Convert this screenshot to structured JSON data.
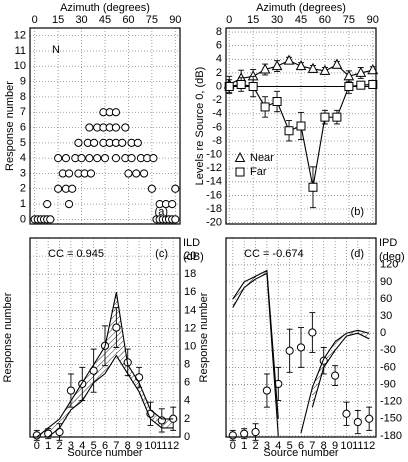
{
  "chart_data": [
    {
      "type": "scatter",
      "xlabel": "Azimuth (degrees)",
      "ylabel": "Response number",
      "xaxis": "top",
      "xlim": [
        -3,
        93
      ],
      "xticks": [
        0,
        15,
        30,
        45,
        60,
        75,
        90
      ],
      "ylim": [
        -0.3,
        12.5
      ],
      "yticks": [
        0,
        1,
        2,
        3,
        4,
        5,
        6,
        7,
        8,
        9,
        10,
        11,
        12
      ],
      "grid": true,
      "annotation": "N",
      "label": "(a)",
      "label_loc": "lower right",
      "x": [
        0,
        2,
        4,
        6,
        8,
        10,
        78,
        80,
        82,
        84,
        86,
        88,
        90,
        8,
        22,
        80,
        84,
        88,
        15,
        20,
        24,
        75,
        90,
        18,
        22,
        28,
        32,
        36,
        60,
        65,
        70,
        15,
        20,
        26,
        30,
        35,
        40,
        45,
        52,
        58,
        62,
        68,
        72,
        76,
        28,
        34,
        38,
        44,
        48,
        52,
        56,
        62,
        66,
        35,
        40,
        44,
        48,
        52,
        58,
        44,
        48,
        52
      ],
      "y": [
        0,
        0,
        0,
        0,
        0,
        0,
        0,
        0,
        0,
        0,
        0,
        0,
        0,
        1,
        1,
        1,
        1,
        1,
        2,
        2,
        2,
        2,
        2,
        3,
        3,
        3,
        3,
        3,
        3,
        3,
        3,
        4,
        4,
        4,
        4,
        4,
        4,
        4,
        4,
        4,
        4,
        4,
        4,
        4,
        5,
        5,
        5,
        5,
        5,
        5,
        5,
        5,
        5,
        6,
        6,
        6,
        6,
        6,
        6,
        7,
        7,
        7
      ]
    },
    {
      "type": "line",
      "xlabel": "Azimuth (degrees)",
      "ylabel": "Levels re Source 0, (dB)",
      "xaxis": "top",
      "xlim": [
        -2,
        92
      ],
      "xticks": [
        0,
        15,
        30,
        45,
        60,
        75,
        90
      ],
      "ylim": [
        -20.2,
        8.6
      ],
      "yticks": [
        -20,
        -18,
        -16,
        -14,
        -12,
        -10,
        -8,
        -6,
        -4,
        -2,
        0,
        2,
        4,
        6,
        8
      ],
      "grid": true,
      "reference_line": 0,
      "label": "(b)",
      "label_loc": "lower right",
      "legend": "center left",
      "x": [
        0,
        7.5,
        15,
        22.5,
        30,
        37.5,
        45,
        52.5,
        60,
        67.5,
        75,
        82.5,
        90
      ],
      "series": [
        {
          "name": "Near",
          "marker": "triangle",
          "values": [
            0.3,
            1.2,
            1.5,
            2.5,
            3.0,
            3.8,
            3.0,
            2.6,
            2.3,
            3.2,
            1.5,
            2.0,
            2.4
          ],
          "errors": [
            1.2,
            1.2,
            1,
            0.8,
            0.8,
            0.5,
            0.5,
            0.5,
            0.5,
            0.5,
            0.8,
            0.8,
            0.5
          ]
        },
        {
          "name": "Far",
          "marker": "square",
          "values": [
            0,
            0.3,
            0,
            -3,
            -2.2,
            -6.5,
            -5.8,
            -14.8,
            -4.5,
            -4.5,
            0,
            0.2,
            0.3
          ],
          "errors": [
            1,
            1,
            1.5,
            1.5,
            1.5,
            1.5,
            2,
            3,
            1,
            1,
            1,
            0.5,
            0.5
          ]
        }
      ]
    },
    {
      "type": "line",
      "xlabel": "Source number",
      "ylabel": "Response number",
      "y2label": [
        "ILD",
        "(dB)"
      ],
      "xaxis": "bottom",
      "xlim": [
        -0.6,
        12.6
      ],
      "xticks": [
        0,
        1,
        2,
        3,
        4,
        5,
        6,
        7,
        8,
        9,
        10,
        11,
        12
      ],
      "ylim": [
        0,
        12
      ],
      "y2lim": [
        0,
        22
      ],
      "y2ticks": [
        0,
        2,
        4,
        6,
        8,
        10,
        12,
        14,
        16,
        18,
        20
      ],
      "grid": true,
      "annotation": "CC = 0.945",
      "label": "(c)",
      "label_loc": "upper right",
      "hatch_between": [
        1,
        2
      ],
      "x": [
        0,
        1,
        2,
        3,
        4,
        5,
        6,
        7,
        8,
        9,
        10,
        11,
        12
      ],
      "series": [
        {
          "marker": "circle",
          "linestyle": "none",
          "values": [
            0.1,
            0.2,
            0.3,
            2.8,
            3.2,
            4.0,
            5.5,
            6.6,
            4.5,
            3.6,
            1.4,
            1.0,
            1.1
          ],
          "errors": [
            0.3,
            0.3,
            0.5,
            1,
            1,
            1.3,
            1.2,
            1.2,
            0.8,
            0.6,
            0.7,
            0.7,
            0.7
          ]
        },
        {
          "axis": "y2",
          "marker": "none",
          "values": [
            0,
            1,
            2,
            4,
            6,
            8,
            10,
            16,
            8,
            6,
            3,
            2,
            2
          ]
        },
        {
          "axis": "y2",
          "marker": "none",
          "values": [
            0,
            0,
            1,
            3,
            4,
            6,
            7,
            9,
            7,
            5,
            2,
            1,
            1
          ]
        }
      ]
    },
    {
      "type": "line",
      "xlabel": "Source number",
      "ylabel": "Response number",
      "y2label": [
        "IPD",
        "(deg)"
      ],
      "xaxis": "bottom",
      "xlim": [
        -0.6,
        12.6
      ],
      "xticks": [
        0,
        1,
        2,
        3,
        4,
        5,
        6,
        7,
        8,
        9,
        10,
        11,
        12
      ],
      "ylim": [
        0,
        12
      ],
      "y2lim": [
        -182,
        167
      ],
      "y2ticks": [
        -180,
        -150,
        -120,
        -90,
        -60,
        -30,
        0,
        30,
        60,
        90,
        120
      ],
      "grid": true,
      "annotation": "CC = -0.674",
      "label": "(d)",
      "label_loc": "upper right",
      "hatch_between": [
        1,
        2
      ],
      "x": [
        0,
        1,
        2,
        3,
        4,
        5,
        6,
        7,
        8,
        9,
        10,
        11,
        12
      ],
      "series": [
        {
          "marker": "circle",
          "linestyle": "none",
          "values": [
            0.1,
            0.2,
            0.3,
            2.8,
            3.2,
            5.2,
            5.4,
            6.3,
            4.6,
            3.7,
            1.4,
            0.9,
            1.1
          ],
          "errors": [
            0.3,
            0.3,
            0.5,
            1,
            1,
            1.3,
            1.2,
            1.2,
            0.8,
            0.6,
            0.7,
            0.7,
            0.7
          ]
        },
        {
          "axis": "y2",
          "marker": "none",
          "values": [
            60,
            90,
            100,
            110,
            -150,
            null,
            -175,
            -95,
            -45,
            -15,
            0,
            5,
            0
          ]
        },
        {
          "axis": "y2",
          "marker": "none",
          "values": [
            45,
            80,
            95,
            105,
            -180,
            null,
            null,
            -130,
            -60,
            -30,
            -5,
            0,
            -10
          ]
        }
      ]
    }
  ]
}
